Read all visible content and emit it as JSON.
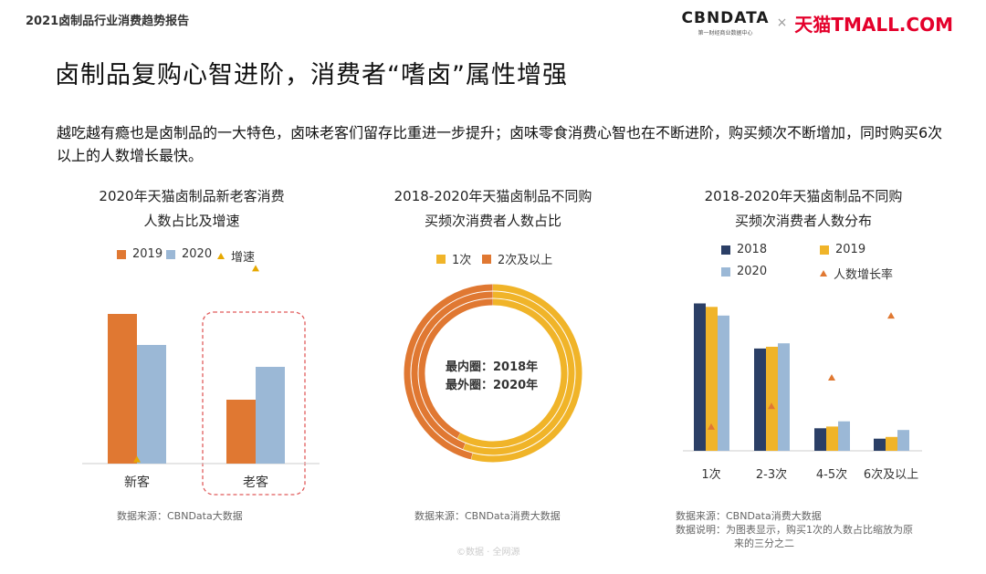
{
  "header": {
    "report_title": "2021卤制品行业消费趋势报告",
    "logo_cbn": "CBNDATA",
    "logo_cbn_sub": "第一财经商业数据中心",
    "logo_times": "×",
    "logo_tmall": "天猫TMALL.COM"
  },
  "page_title": "卤制品复购心智进阶，消费者“嗜卤”属性增强",
  "description": "越吃越有瘾也是卤制品的一大特色，卤味老客们留存比重进一步提升；卤味零食消费心智也在不断进阶，购买频次不断增加，同时购买6次以上的人数增长最快。",
  "colors": {
    "c2018": "#2b3f66",
    "c2019": "#e07832",
    "c2020": "#9bb8d6",
    "yellow": "#f0b429",
    "gold": "#e6a800",
    "orange": "#e07832",
    "dashed_red": "#e05a5a"
  },
  "chart_data": [
    {
      "type": "bar",
      "title_line1": "2020年天猫卤制品新老客消费",
      "title_line2": "人数占比及增速",
      "legend": [
        "2019",
        "2020",
        "增速"
      ],
      "categories": [
        "新客",
        "老客"
      ],
      "series": [
        {
          "name": "2019",
          "values": [
            0.82,
            0.35
          ]
        },
        {
          "name": "2020",
          "values": [
            0.65,
            0.53
          ]
        }
      ],
      "growth": {
        "name": "增速",
        "values": [
          0.02,
          0.98
        ]
      },
      "highlight": "老客",
      "source": "数据来源：CBNData大数据"
    },
    {
      "type": "pie",
      "title_line1": "2018-2020年天猫卤制品不同购",
      "title_line2": "买频次消费者人数占比",
      "legend": [
        "1次",
        "2次及以上"
      ],
      "rings": [
        {
          "year": "2018",
          "values": [
            0.58,
            0.42
          ]
        },
        {
          "year": "2019",
          "values": [
            0.56,
            0.44
          ]
        },
        {
          "year": "2020",
          "values": [
            0.54,
            0.46
          ]
        }
      ],
      "center_label_line1": "最内圈：2018年",
      "center_label_line2": "最外圈：2020年",
      "source": "数据来源：CBNData消费大数据"
    },
    {
      "type": "bar",
      "title_line1": "2018-2020年天猫卤制品不同购",
      "title_line2": "买频次消费者人数分布",
      "legend": [
        "2018",
        "2019",
        "2020",
        "人数增长率"
      ],
      "categories": [
        "1次",
        "2-3次",
        "4-5次",
        "6次及以上"
      ],
      "series": [
        {
          "name": "2018",
          "values": [
            0.85,
            0.59,
            0.13,
            0.07
          ]
        },
        {
          "name": "2019",
          "values": [
            0.83,
            0.6,
            0.14,
            0.08
          ]
        },
        {
          "name": "2020",
          "values": [
            0.78,
            0.62,
            0.17,
            0.12
          ]
        }
      ],
      "growth": {
        "name": "人数增长率",
        "values": [
          0.15,
          0.28,
          0.46,
          0.85
        ]
      },
      "source_line1": "数据来源：CBNData消费大数据",
      "source_line2": "数据说明：为图表显示，购买1次的人数占比缩放为原",
      "source_line3": "来的三分之二"
    }
  ],
  "watermark": "©数据 · 全网源"
}
